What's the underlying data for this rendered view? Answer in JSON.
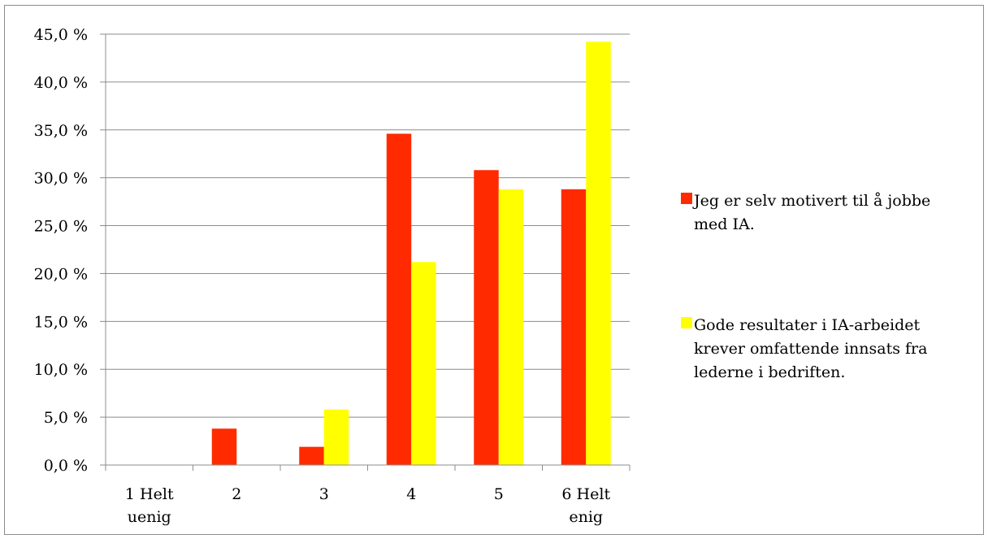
{
  "chart_data": {
    "type": "bar",
    "categories": [
      [
        "1 Helt",
        "uenig"
      ],
      [
        "2"
      ],
      [
        "3"
      ],
      [
        "4"
      ],
      [
        "5"
      ],
      [
        "6 Helt",
        "enig"
      ]
    ],
    "series": [
      {
        "name": "Jeg er selv motivert til å jobbe med IA.",
        "name_lines": [
          "Jeg er selv motivert til å jobbe",
          "med IA."
        ],
        "color": "#ff2a00",
        "values": [
          0.0,
          3.8,
          1.9,
          34.6,
          30.8,
          28.8
        ]
      },
      {
        "name": "Gode resultater i IA-arbeidet krever omfattende innsats fra lederne i bedriften.",
        "name_lines": [
          "Gode resultater i IA-arbeidet",
          "krever omfattende innsats fra",
          "lederne i bedriften."
        ],
        "color": "#ffff00",
        "values": [
          0.0,
          0.0,
          5.8,
          21.2,
          28.8,
          44.2
        ]
      }
    ],
    "yticks": [
      "0,0 %",
      "5,0 %",
      "10,0 %",
      "15,0 %",
      "20,0 %",
      "25,0 %",
      "30,0 %",
      "35,0 %",
      "40,0 %",
      "45,0 %"
    ],
    "ylim": [
      0,
      45
    ],
    "grid": true,
    "legend_position": "right"
  }
}
